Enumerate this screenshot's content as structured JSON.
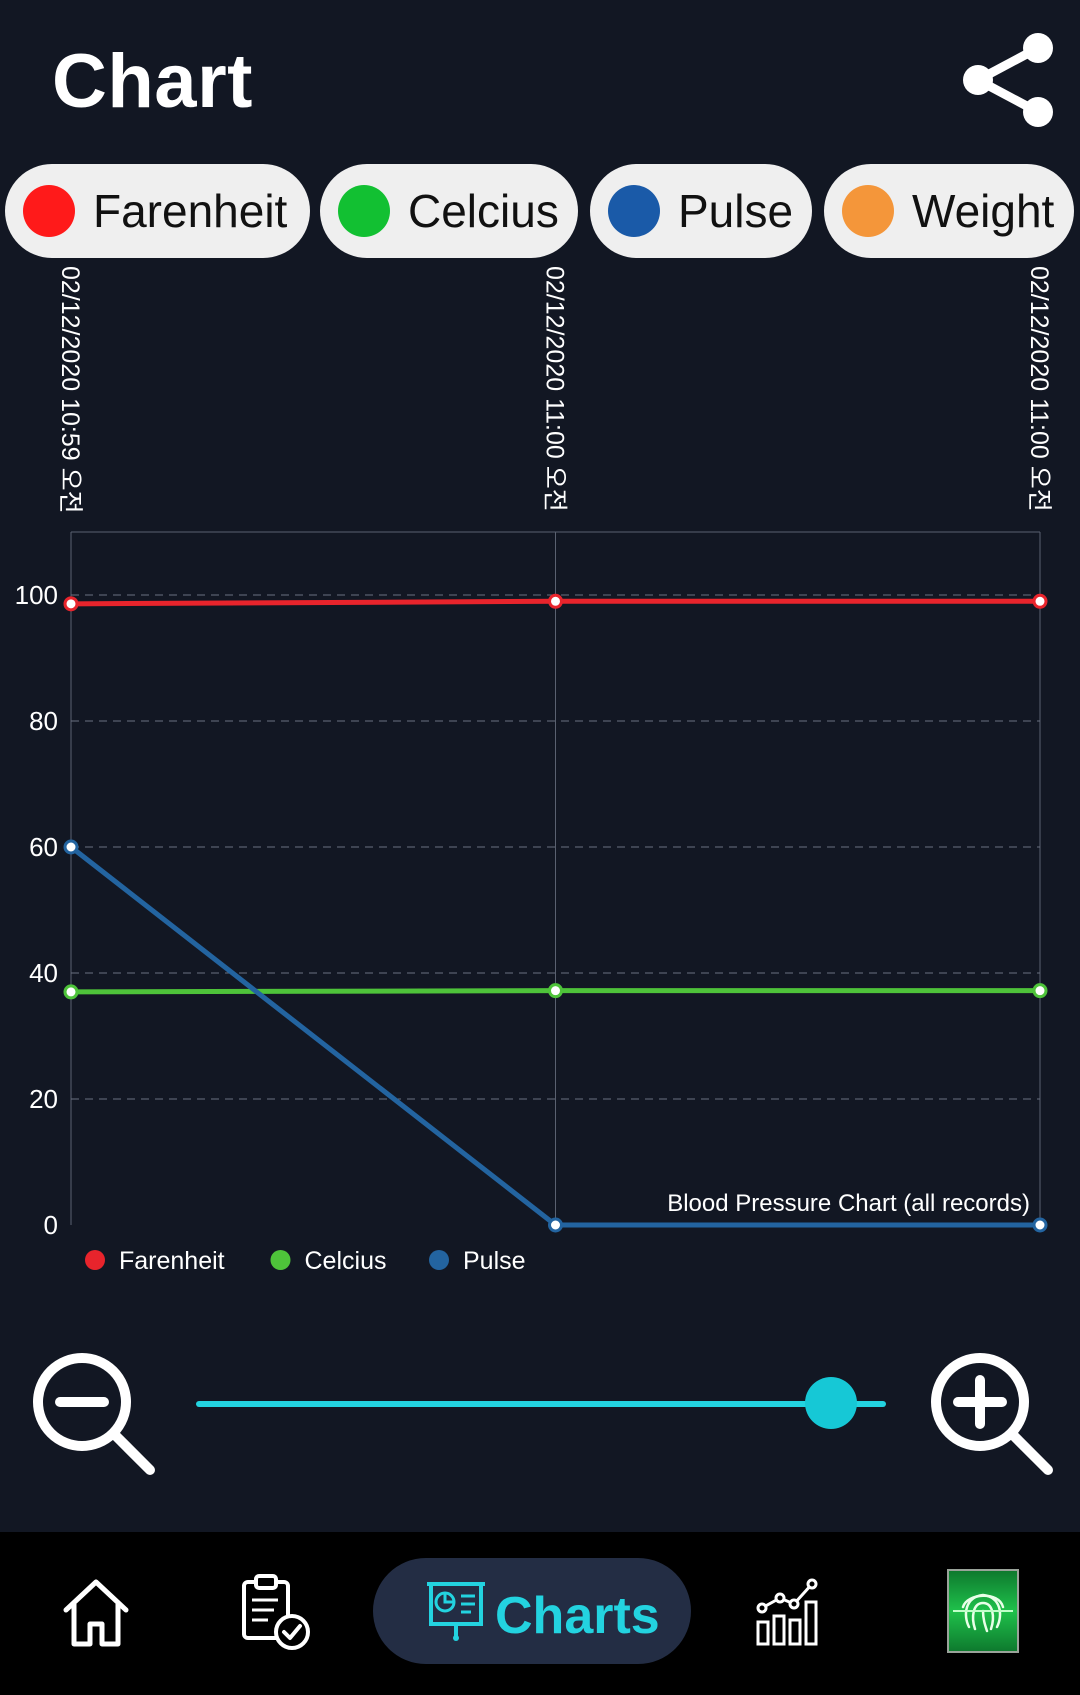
{
  "header": {
    "title": "Chart"
  },
  "icons": {
    "share": "share-icon",
    "zoom_out": "zoom-out-icon",
    "zoom_in": "zoom-in-icon",
    "home": "home-icon",
    "records": "clipboard-check-icon",
    "charts": "presentation-chart-icon",
    "stats": "bar-line-chart-icon",
    "fingerprint": "fingerprint-scan-icon"
  },
  "filters": [
    {
      "label": "Farenheit",
      "color": "#ff1a1a"
    },
    {
      "label": "Celcius",
      "color": "#12c032"
    },
    {
      "label": "Pulse",
      "color": "#1a5aa8"
    },
    {
      "label": "Weight",
      "color": "#f4963a"
    }
  ],
  "chart_data": {
    "type": "line",
    "title": "Blood Pressure Chart (all records)",
    "x": [
      "02/12/2020 10:59 오전",
      "02/12/2020 11:00 오전",
      "02/12/2020 11:00 오전"
    ],
    "series": [
      {
        "name": "Farenheit",
        "color": "#e8242c",
        "values": [
          98.6,
          99.0,
          99.0
        ]
      },
      {
        "name": "Celcius",
        "color": "#4ec33a",
        "values": [
          37.0,
          37.2,
          37.2
        ]
      },
      {
        "name": "Pulse",
        "color": "#2364a0",
        "values": [
          60,
          0,
          0
        ]
      }
    ],
    "yticks": [
      0,
      20,
      40,
      60,
      80,
      100
    ],
    "ylim": [
      0,
      110
    ],
    "grid": true,
    "legend": "bottom-left"
  },
  "zoom": {
    "level": 0.92
  },
  "nav": {
    "charts_label": "Charts",
    "active": "Charts"
  }
}
